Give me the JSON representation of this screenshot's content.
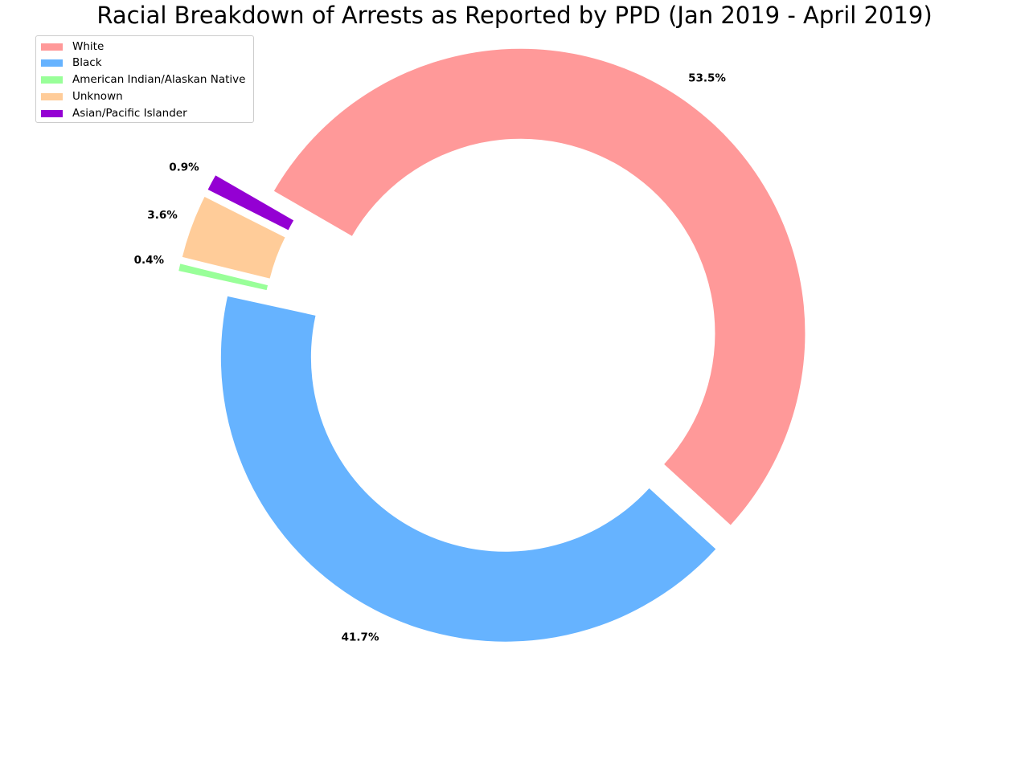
{
  "chart_data": {
    "type": "pie",
    "title": "Racial Breakdown of Arrests as Reported by PPD (Jan 2019 - April 2019)",
    "categories": [
      "White",
      "Black",
      "American Indian/Alaskan Native",
      "Unknown",
      "Asian/Pacific Islander"
    ],
    "values": [
      53.5,
      41.7,
      0.4,
      3.6,
      0.9
    ],
    "labels": [
      "53.5%",
      "41.7%",
      "0.4%",
      "3.6%",
      "0.9%"
    ],
    "colors": [
      "#ff9999",
      "#66b3ff",
      "#99ff99",
      "#ffcc99",
      "#9400d3"
    ],
    "donut": true,
    "legend_position": "top-left"
  }
}
